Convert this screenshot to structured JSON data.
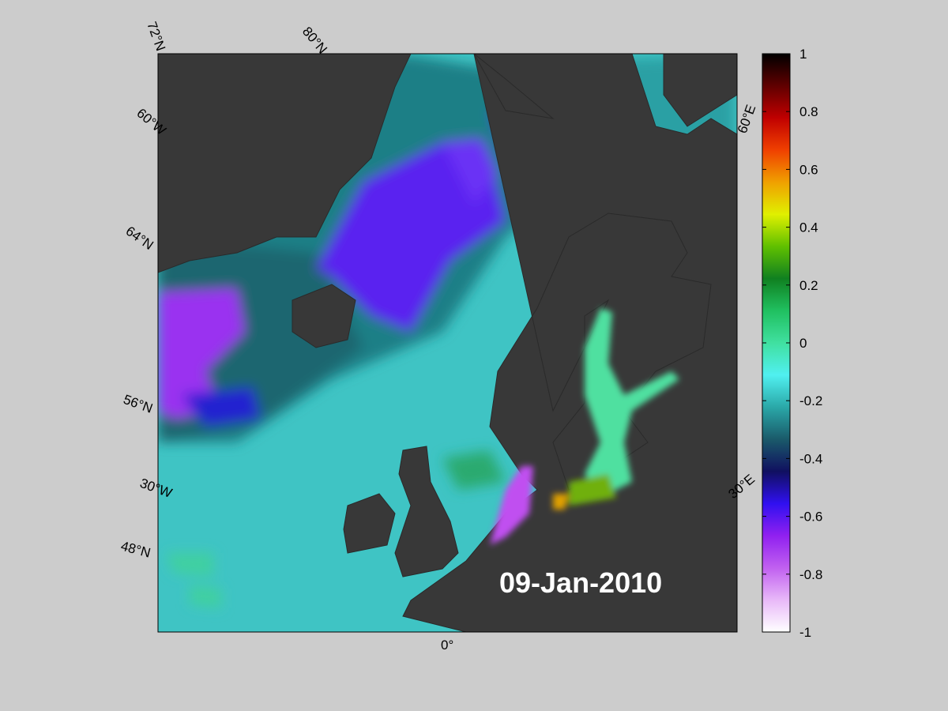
{
  "map": {
    "date_label": "09-Jan-2010",
    "graticule_labels": [
      "72°N",
      "80°N",
      "60°W",
      "64°N",
      "56°N",
      "30°W",
      "48°N",
      "0°",
      "30°E",
      "60°E"
    ],
    "colorbar": {
      "lim": [
        -1,
        1
      ],
      "ticks": [
        -1,
        -0.8,
        -0.6,
        -0.4,
        -0.2,
        0,
        0.2,
        0.4,
        0.6,
        0.8,
        1
      ],
      "colormap": [
        "#ffffff",
        "#e8b8f8",
        "#c060f0",
        "#9020f0",
        "#3010f0",
        "#101060",
        "#1a5a6a",
        "#2aa8a8",
        "#50f0f0",
        "#40e0a0",
        "#20c060",
        "#108020",
        "#60c000",
        "#e0f000",
        "#f0a000",
        "#f04000",
        "#c00000",
        "#600000",
        "#000000"
      ]
    }
  }
}
